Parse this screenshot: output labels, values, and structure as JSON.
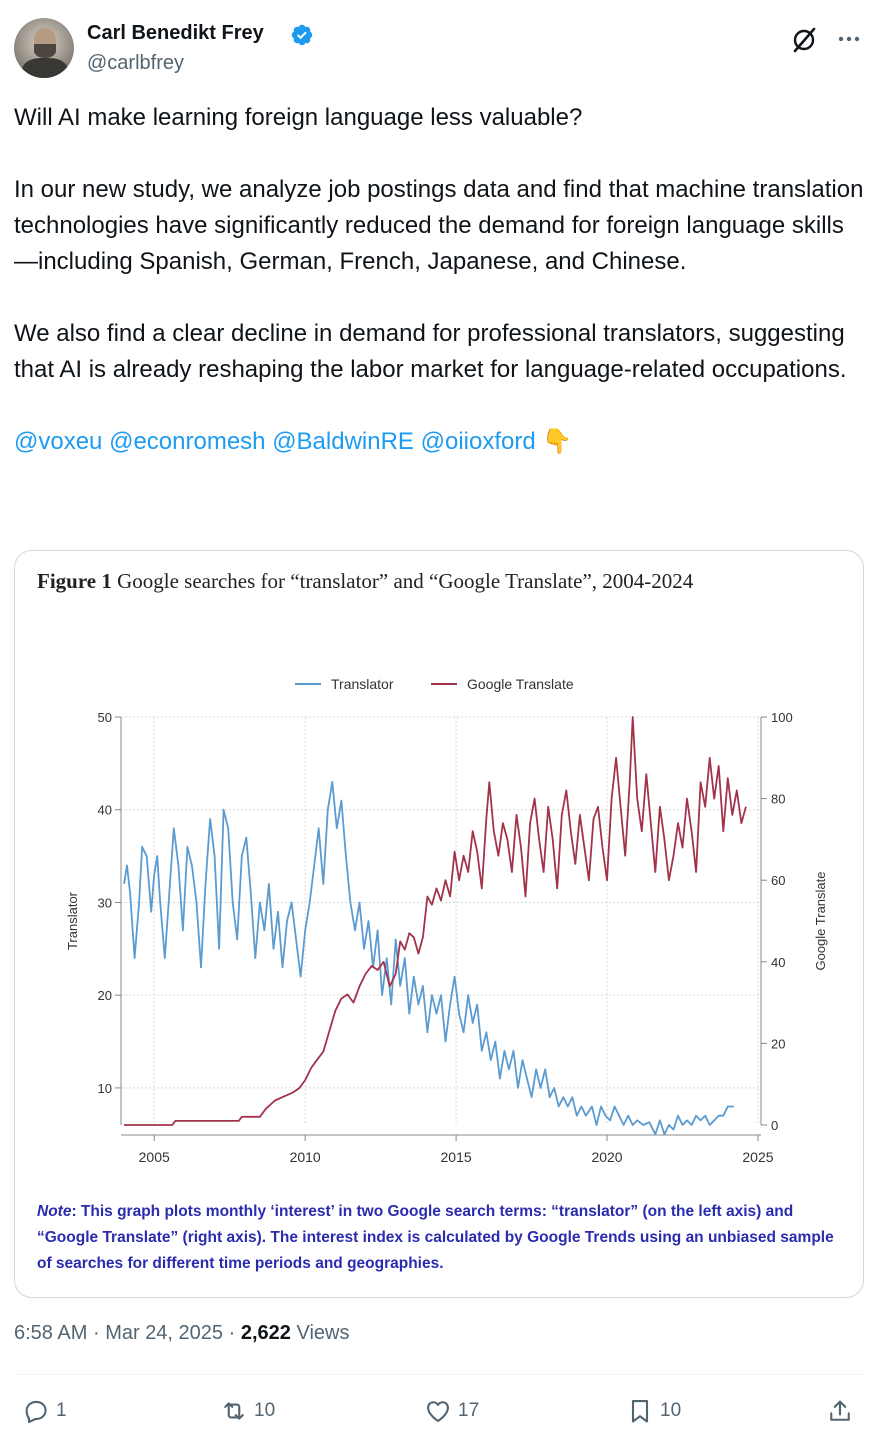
{
  "author": {
    "name": "Carl Benedikt Frey",
    "handle": "@carlbfrey",
    "verified_color": "#1d9bf0"
  },
  "icons": {
    "grok": "grok-slash-icon",
    "more": "more-dots-icon",
    "reply": "reply-icon",
    "repost": "repost-icon",
    "like": "heart-icon",
    "bookmark": "bookmark-icon",
    "share": "share-icon"
  },
  "tweet": {
    "p1": "Will AI make learning foreign language less valuable?",
    "p2": "In our new study, we analyze job postings data and find that machine translation technologies have significantly reduced the demand for foreign language skills—including Spanish, German, French, Japanese, and Chinese.",
    "p3": "We also find a clear decline in demand for professional translators, suggesting that AI is already reshaping the labor market for language-related occupations.",
    "mentions": [
      "@voxeu",
      "@econromesh",
      "@BaldwinRE",
      "@oiioxford"
    ],
    "emoji": "👇"
  },
  "figure": {
    "label": "Figure 1",
    "title": "Google searches for “translator” and “Google Translate”, 2004-2024",
    "note_label": "Note",
    "note_text": ": This graph plots monthly ‘interest’ in two Google search terms: “translator” (on the left axis) and “Google Translate” (right axis). The interest index is calculated by Google Trends using an unbiased sample of searches for different time periods and geographies."
  },
  "chart_data": {
    "type": "line",
    "ylabel_left": "Translator",
    "ylabel_right": "Google Translate",
    "xlim": [
      2003.9,
      2025.1
    ],
    "ylim_left": [
      6,
      50
    ],
    "ylim_right": [
      0,
      100
    ],
    "x_ticks": [
      2005,
      2010,
      2015,
      2020,
      2025
    ],
    "y_ticks_left": [
      10,
      20,
      30,
      40,
      50
    ],
    "y_ticks_right": [
      0,
      20,
      40,
      60,
      80,
      100
    ],
    "grid": true,
    "legend": "top-center",
    "series": [
      {
        "name": "Translator",
        "axis": "left",
        "color": "#5b9bd0",
        "points": [
          [
            2004.0,
            32
          ],
          [
            2004.1,
            34
          ],
          [
            2004.2,
            31
          ],
          [
            2004.35,
            24
          ],
          [
            2004.5,
            30
          ],
          [
            2004.6,
            36
          ],
          [
            2004.75,
            35
          ],
          [
            2004.9,
            29
          ],
          [
            2005.0,
            33
          ],
          [
            2005.1,
            35
          ],
          [
            2005.2,
            30
          ],
          [
            2005.35,
            24
          ],
          [
            2005.5,
            31
          ],
          [
            2005.65,
            38
          ],
          [
            2005.8,
            34
          ],
          [
            2005.95,
            27
          ],
          [
            2006.1,
            36
          ],
          [
            2006.25,
            34
          ],
          [
            2006.4,
            30
          ],
          [
            2006.55,
            23
          ],
          [
            2006.7,
            32
          ],
          [
            2006.85,
            39
          ],
          [
            2007.0,
            35
          ],
          [
            2007.15,
            25
          ],
          [
            2007.3,
            40
          ],
          [
            2007.45,
            38
          ],
          [
            2007.6,
            30
          ],
          [
            2007.75,
            26
          ],
          [
            2007.9,
            35
          ],
          [
            2008.05,
            37
          ],
          [
            2008.2,
            31
          ],
          [
            2008.35,
            24
          ],
          [
            2008.5,
            30
          ],
          [
            2008.65,
            27
          ],
          [
            2008.8,
            32
          ],
          [
            2008.95,
            25
          ],
          [
            2009.1,
            29
          ],
          [
            2009.25,
            23
          ],
          [
            2009.4,
            28
          ],
          [
            2009.55,
            30
          ],
          [
            2009.7,
            26
          ],
          [
            2009.85,
            22
          ],
          [
            2010.0,
            27
          ],
          [
            2010.15,
            30
          ],
          [
            2010.3,
            34
          ],
          [
            2010.45,
            38
          ],
          [
            2010.6,
            32
          ],
          [
            2010.75,
            40
          ],
          [
            2010.9,
            43
          ],
          [
            2011.05,
            38
          ],
          [
            2011.2,
            41
          ],
          [
            2011.35,
            35
          ],
          [
            2011.5,
            30
          ],
          [
            2011.65,
            27
          ],
          [
            2011.8,
            30
          ],
          [
            2011.95,
            25
          ],
          [
            2012.1,
            28
          ],
          [
            2012.25,
            23
          ],
          [
            2012.4,
            27
          ],
          [
            2012.55,
            20
          ],
          [
            2012.7,
            24
          ],
          [
            2012.85,
            19
          ],
          [
            2013.0,
            26
          ],
          [
            2013.15,
            21
          ],
          [
            2013.3,
            24
          ],
          [
            2013.45,
            18
          ],
          [
            2013.6,
            22
          ],
          [
            2013.75,
            19
          ],
          [
            2013.9,
            21
          ],
          [
            2014.05,
            16
          ],
          [
            2014.2,
            20
          ],
          [
            2014.35,
            18
          ],
          [
            2014.5,
            20
          ],
          [
            2014.65,
            15
          ],
          [
            2014.8,
            19
          ],
          [
            2014.95,
            22
          ],
          [
            2015.1,
            18
          ],
          [
            2015.25,
            16
          ],
          [
            2015.4,
            20
          ],
          [
            2015.55,
            17
          ],
          [
            2015.7,
            19
          ],
          [
            2015.85,
            14
          ],
          [
            2016.0,
            16
          ],
          [
            2016.15,
            13
          ],
          [
            2016.3,
            15
          ],
          [
            2016.45,
            11
          ],
          [
            2016.6,
            14
          ],
          [
            2016.75,
            12
          ],
          [
            2016.9,
            14
          ],
          [
            2017.05,
            10
          ],
          [
            2017.2,
            13
          ],
          [
            2017.35,
            11
          ],
          [
            2017.5,
            9
          ],
          [
            2017.65,
            12
          ],
          [
            2017.8,
            10
          ],
          [
            2017.95,
            12
          ],
          [
            2018.1,
            9
          ],
          [
            2018.25,
            10
          ],
          [
            2018.4,
            8
          ],
          [
            2018.55,
            9
          ],
          [
            2018.7,
            8
          ],
          [
            2018.85,
            9
          ],
          [
            2019.0,
            7
          ],
          [
            2019.15,
            8
          ],
          [
            2019.3,
            7
          ],
          [
            2019.5,
            8
          ],
          [
            2019.65,
            6
          ],
          [
            2019.8,
            8
          ],
          [
            2019.95,
            7
          ],
          [
            2020.1,
            6.5
          ],
          [
            2020.25,
            8
          ],
          [
            2020.4,
            7
          ],
          [
            2020.55,
            6
          ],
          [
            2020.7,
            7
          ],
          [
            2020.85,
            6
          ],
          [
            2021.0,
            6.5
          ],
          [
            2021.2,
            6
          ],
          [
            2021.4,
            6.3
          ],
          [
            2021.6,
            5
          ],
          [
            2021.75,
            6.5
          ],
          [
            2021.9,
            5
          ],
          [
            2022.05,
            6
          ],
          [
            2022.2,
            5.5
          ],
          [
            2022.35,
            7
          ],
          [
            2022.5,
            6
          ],
          [
            2022.65,
            6.5
          ],
          [
            2022.8,
            6
          ],
          [
            2022.95,
            7
          ],
          [
            2023.1,
            6.5
          ],
          [
            2023.25,
            7
          ],
          [
            2023.4,
            6
          ],
          [
            2023.55,
            6.5
          ],
          [
            2023.7,
            7
          ],
          [
            2023.85,
            7
          ],
          [
            2024.0,
            8
          ],
          [
            2024.2,
            8
          ]
        ]
      },
      {
        "name": "Google Translate",
        "axis": "right",
        "color": "#a3334a",
        "points": [
          [
            2004.0,
            0
          ],
          [
            2005.6,
            0
          ],
          [
            2005.7,
            1
          ],
          [
            2007.8,
            1
          ],
          [
            2007.9,
            2
          ],
          [
            2008.5,
            2
          ],
          [
            2008.7,
            4
          ],
          [
            2009.0,
            6
          ],
          [
            2009.3,
            7
          ],
          [
            2009.6,
            8
          ],
          [
            2009.8,
            9
          ],
          [
            2010.0,
            11
          ],
          [
            2010.2,
            14
          ],
          [
            2010.4,
            16
          ],
          [
            2010.6,
            18
          ],
          [
            2010.8,
            23
          ],
          [
            2011.0,
            28
          ],
          [
            2011.2,
            31
          ],
          [
            2011.4,
            32
          ],
          [
            2011.6,
            30
          ],
          [
            2011.8,
            34
          ],
          [
            2012.0,
            37
          ],
          [
            2012.2,
            39
          ],
          [
            2012.4,
            38
          ],
          [
            2012.6,
            40
          ],
          [
            2012.8,
            34
          ],
          [
            2013.0,
            37
          ],
          [
            2013.15,
            45
          ],
          [
            2013.3,
            43
          ],
          [
            2013.45,
            47
          ],
          [
            2013.6,
            46
          ],
          [
            2013.75,
            42
          ],
          [
            2013.9,
            46
          ],
          [
            2014.05,
            56
          ],
          [
            2014.2,
            54
          ],
          [
            2014.35,
            58
          ],
          [
            2014.5,
            55
          ],
          [
            2014.65,
            60
          ],
          [
            2014.8,
            56
          ],
          [
            2014.95,
            67
          ],
          [
            2015.1,
            60
          ],
          [
            2015.25,
            66
          ],
          [
            2015.4,
            62
          ],
          [
            2015.55,
            72
          ],
          [
            2015.7,
            67
          ],
          [
            2015.85,
            58
          ],
          [
            2016.0,
            75
          ],
          [
            2016.1,
            84
          ],
          [
            2016.25,
            72
          ],
          [
            2016.4,
            66
          ],
          [
            2016.55,
            74
          ],
          [
            2016.7,
            70
          ],
          [
            2016.85,
            62
          ],
          [
            2017.0,
            76
          ],
          [
            2017.15,
            68
          ],
          [
            2017.3,
            56
          ],
          [
            2017.45,
            74
          ],
          [
            2017.6,
            80
          ],
          [
            2017.75,
            70
          ],
          [
            2017.9,
            62
          ],
          [
            2018.05,
            78
          ],
          [
            2018.2,
            70
          ],
          [
            2018.35,
            58
          ],
          [
            2018.5,
            76
          ],
          [
            2018.65,
            82
          ],
          [
            2018.8,
            72
          ],
          [
            2018.95,
            64
          ],
          [
            2019.1,
            76
          ],
          [
            2019.25,
            68
          ],
          [
            2019.4,
            60
          ],
          [
            2019.55,
            75
          ],
          [
            2019.7,
            78
          ],
          [
            2019.85,
            68
          ],
          [
            2020.0,
            60
          ],
          [
            2020.15,
            80
          ],
          [
            2020.3,
            90
          ],
          [
            2020.45,
            78
          ],
          [
            2020.6,
            66
          ],
          [
            2020.75,
            84
          ],
          [
            2020.85,
            100
          ],
          [
            2021.0,
            80
          ],
          [
            2021.15,
            72
          ],
          [
            2021.3,
            86
          ],
          [
            2021.45,
            74
          ],
          [
            2021.6,
            62
          ],
          [
            2021.75,
            78
          ],
          [
            2021.9,
            70
          ],
          [
            2022.05,
            60
          ],
          [
            2022.2,
            66
          ],
          [
            2022.35,
            74
          ],
          [
            2022.5,
            68
          ],
          [
            2022.65,
            80
          ],
          [
            2022.8,
            72
          ],
          [
            2022.95,
            62
          ],
          [
            2023.1,
            84
          ],
          [
            2023.25,
            78
          ],
          [
            2023.4,
            90
          ],
          [
            2023.55,
            80
          ],
          [
            2023.7,
            88
          ],
          [
            2023.85,
            72
          ],
          [
            2024.0,
            85
          ],
          [
            2024.15,
            76
          ],
          [
            2024.3,
            82
          ],
          [
            2024.45,
            74
          ],
          [
            2024.6,
            78
          ]
        ]
      }
    ]
  },
  "meta": {
    "time": "6:58 AM",
    "date": "Mar 24, 2025",
    "sep": "·",
    "views_count": "2,622",
    "views_label": "Views"
  },
  "actions": {
    "reply_count": "1",
    "repost_count": "10",
    "like_count": "17",
    "bookmark_count": "10"
  }
}
